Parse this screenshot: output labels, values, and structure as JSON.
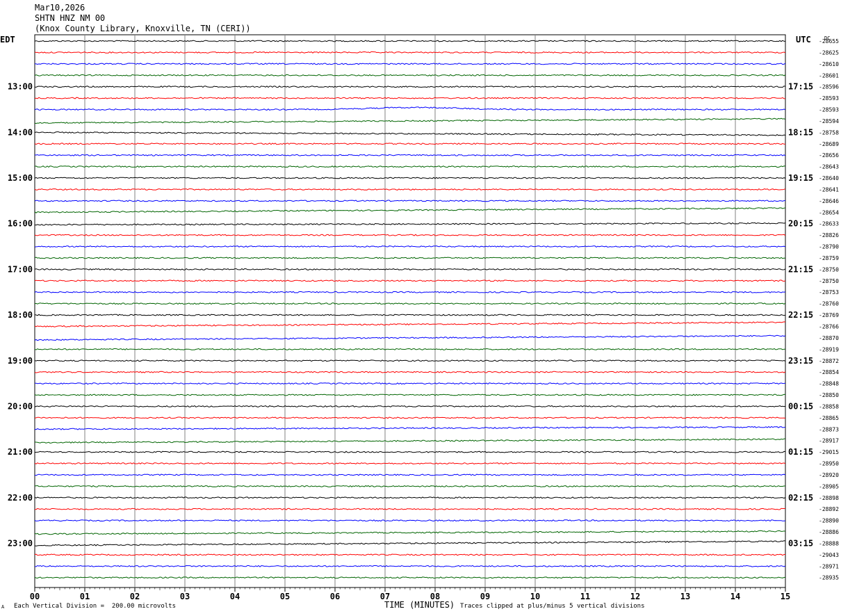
{
  "header": {
    "date": "Mar10,2026",
    "station": "SHTN HNZ NM 00",
    "location": "(Knox County Library, Knoxville, TN (CERI))"
  },
  "left_zone": "EDT",
  "right_zone": "UTC",
  "dc_label": "DC",
  "footer": {
    "scale_note": "Each Vertical Division =  200.00 microvolts",
    "clip_note": "Traces clipped at plus/minus 5 vertical divisions",
    "corner_mark": "A"
  },
  "colors": {
    "trace_cycle": [
      "#000000",
      "#ff0000",
      "#0000ff",
      "#006400"
    ],
    "grid": "#808080"
  },
  "chart_data": {
    "type": "line",
    "xlabel": "TIME (MINUTES)",
    "x_ticks": [
      "00",
      "01",
      "02",
      "03",
      "04",
      "05",
      "06",
      "07",
      "08",
      "09",
      "10",
      "11",
      "12",
      "13",
      "14",
      "15"
    ],
    "xlim": [
      0,
      15
    ],
    "left_hour_labels": [
      "13:00",
      "14:00",
      "15:00",
      "16:00",
      "17:00",
      "18:00",
      "19:00",
      "20:00",
      "21:00",
      "22:00",
      "23:00"
    ],
    "right_hour_labels": [
      "17:15",
      "18:15",
      "19:15",
      "20:15",
      "21:15",
      "22:15",
      "23:15",
      "00:15",
      "01:15",
      "02:15",
      "03:15"
    ],
    "dc_offsets": [
      "-28655",
      "-28625",
      "-28610",
      "-28601",
      "-28596",
      "-28593",
      "-28593",
      "-28594",
      "-28758",
      "-28689",
      "-28656",
      "-28643",
      "-28640",
      "-28641",
      "-28646",
      "-28654",
      "-28633",
      "-28826",
      "-28790",
      "-28759",
      "-28750",
      "-28750",
      "-28753",
      "-28760",
      "-28769",
      "-28766",
      "-28870",
      "-28919",
      "-28872",
      "-28854",
      "-28848",
      "-28850",
      "-28858",
      "-28865",
      "-28873",
      "-28917",
      "-29015",
      "-28950",
      "-28920",
      "-28905",
      "-28898",
      "-28892",
      "-28890",
      "-28886",
      "-28888",
      "-29043",
      "-28971",
      "-28935"
    ],
    "trace_count": 48,
    "traces_per_hour": 4,
    "minutes_per_trace": 15
  }
}
